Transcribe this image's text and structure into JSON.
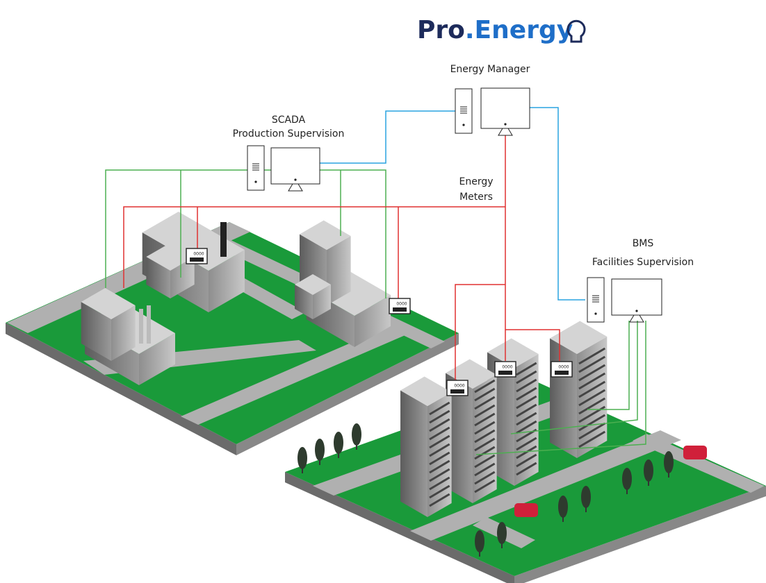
{
  "logo": {
    "text_dark": "Pro",
    "text_blue": ".Energy"
  },
  "nodes": [
    {
      "lines": [
        "Energy Manager"
      ]
    },
    {
      "lines": [
        "SCADA",
        "Production Supervision"
      ]
    },
    {
      "lines": [
        "Energy",
        "Meters"
      ]
    },
    {
      "lines": [
        "BMS",
        "Facilities Supervision"
      ]
    }
  ],
  "meter_display": "0000"
}
